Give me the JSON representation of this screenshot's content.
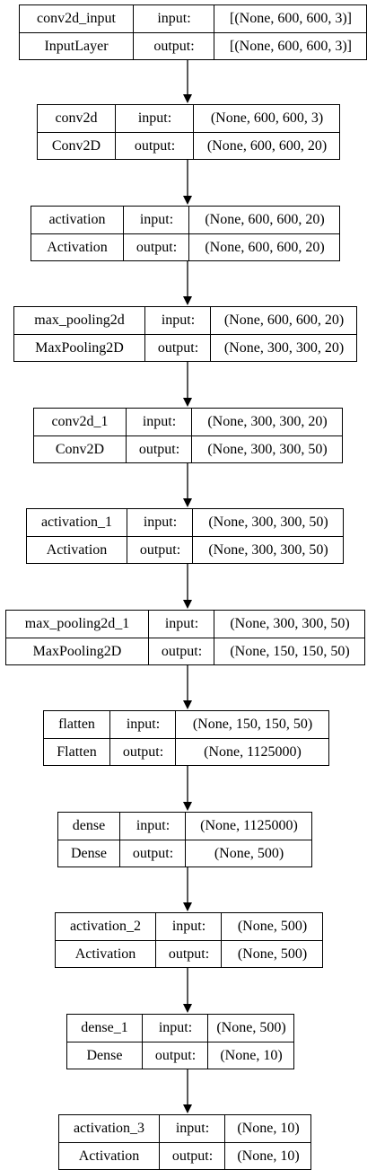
{
  "labels": {
    "input": "input:",
    "output": "output:"
  },
  "layers": [
    {
      "name": "conv2d_input",
      "type": "InputLayer",
      "input": "[(None, 600, 600, 3)]",
      "output": "[(None, 600, 600, 3)]"
    },
    {
      "name": "conv2d",
      "type": "Conv2D",
      "input": "(None, 600, 600, 3)",
      "output": "(None, 600, 600, 20)"
    },
    {
      "name": "activation",
      "type": "Activation",
      "input": "(None, 600, 600, 20)",
      "output": "(None, 600, 600, 20)"
    },
    {
      "name": "max_pooling2d",
      "type": "MaxPooling2D",
      "input": "(None, 600, 600, 20)",
      "output": "(None, 300, 300, 20)"
    },
    {
      "name": "conv2d_1",
      "type": "Conv2D",
      "input": "(None, 300, 300, 20)",
      "output": "(None, 300, 300, 50)"
    },
    {
      "name": "activation_1",
      "type": "Activation",
      "input": "(None, 300, 300, 50)",
      "output": "(None, 300, 300, 50)"
    },
    {
      "name": "max_pooling2d_1",
      "type": "MaxPooling2D",
      "input": "(None, 300, 300, 50)",
      "output": "(None, 150, 150, 50)"
    },
    {
      "name": "flatten",
      "type": "Flatten",
      "input": "(None, 150, 150, 50)",
      "output": "(None, 1125000)"
    },
    {
      "name": "dense",
      "type": "Dense",
      "input": "(None, 1125000)",
      "output": "(None, 500)"
    },
    {
      "name": "activation_2",
      "type": "Activation",
      "input": "(None, 500)",
      "output": "(None, 500)"
    },
    {
      "name": "dense_1",
      "type": "Dense",
      "input": "(None, 500)",
      "output": "(None, 10)"
    },
    {
      "name": "activation_3",
      "type": "Activation",
      "input": "(None, 10)",
      "output": "(None, 10)"
    }
  ]
}
